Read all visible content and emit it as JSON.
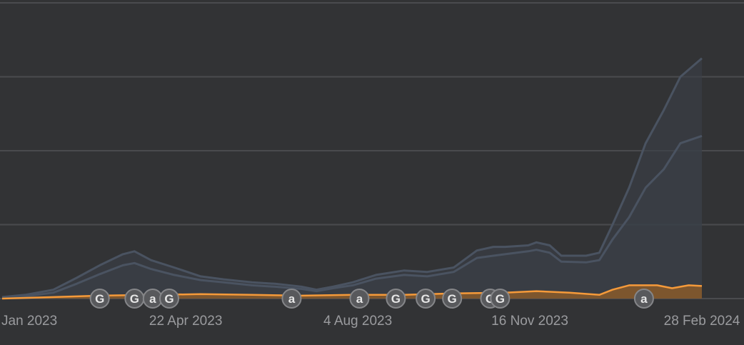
{
  "chart_data": {
    "type": "area",
    "title": "",
    "xlabel": "",
    "ylabel": "",
    "x_ticks": [
      "Jan 2023",
      "22 Apr 2023",
      "4 Aug 2023",
      "16 Nov 2023",
      "28 Feb 2024"
    ],
    "x_tick_dates": [
      "2023-01-08",
      "2023-04-22",
      "2023-08-04",
      "2023-11-16",
      "2024-02-28"
    ],
    "x_range": [
      "2023-01-01",
      "2024-02-28"
    ],
    "y_range": [
      0,
      4
    ],
    "y_gridlines": [
      0,
      1,
      2,
      3,
      4
    ],
    "y_tick_labels_visible": false,
    "grid": true,
    "series": [
      {
        "color": "#4a5361",
        "fill": "#3a3f47",
        "points": [
          [
            "2023-01-01",
            0.02
          ],
          [
            "2023-01-15",
            0.05
          ],
          [
            "2023-02-01",
            0.12
          ],
          [
            "2023-02-15",
            0.28
          ],
          [
            "2023-03-01",
            0.45
          ],
          [
            "2023-03-15",
            0.6
          ],
          [
            "2023-03-22",
            0.64
          ],
          [
            "2023-04-01",
            0.52
          ],
          [
            "2023-04-15",
            0.42
          ],
          [
            "2023-05-01",
            0.3
          ],
          [
            "2023-05-15",
            0.26
          ],
          [
            "2023-06-01",
            0.22
          ],
          [
            "2023-06-15",
            0.2
          ],
          [
            "2023-07-01",
            0.16
          ],
          [
            "2023-07-10",
            0.12
          ],
          [
            "2023-07-20",
            0.16
          ],
          [
            "2023-08-01",
            0.22
          ],
          [
            "2023-08-15",
            0.32
          ],
          [
            "2023-09-01",
            0.38
          ],
          [
            "2023-09-15",
            0.36
          ],
          [
            "2023-10-01",
            0.42
          ],
          [
            "2023-10-15",
            0.65
          ],
          [
            "2023-10-25",
            0.7
          ],
          [
            "2023-11-01",
            0.7
          ],
          [
            "2023-11-15",
            0.72
          ],
          [
            "2023-11-20",
            0.76
          ],
          [
            "2023-11-28",
            0.72
          ],
          [
            "2023-12-05",
            0.58
          ],
          [
            "2023-12-20",
            0.58
          ],
          [
            "2023-12-28",
            0.62
          ],
          [
            "2024-01-05",
            1.0
          ],
          [
            "2024-01-15",
            1.5
          ],
          [
            "2024-01-25",
            2.1
          ],
          [
            "2024-02-05",
            2.55
          ],
          [
            "2024-02-15",
            3.0
          ],
          [
            "2024-02-28",
            3.25
          ]
        ]
      },
      {
        "color": "#4a5361",
        "fill": "#3a3f47",
        "points": [
          [
            "2023-01-01",
            0.01
          ],
          [
            "2023-01-15",
            0.03
          ],
          [
            "2023-02-01",
            0.08
          ],
          [
            "2023-02-15",
            0.2
          ],
          [
            "2023-03-01",
            0.33
          ],
          [
            "2023-03-15",
            0.45
          ],
          [
            "2023-03-22",
            0.48
          ],
          [
            "2023-04-01",
            0.4
          ],
          [
            "2023-04-15",
            0.32
          ],
          [
            "2023-05-01",
            0.25
          ],
          [
            "2023-05-15",
            0.22
          ],
          [
            "2023-06-01",
            0.18
          ],
          [
            "2023-06-15",
            0.16
          ],
          [
            "2023-07-01",
            0.13
          ],
          [
            "2023-07-10",
            0.1
          ],
          [
            "2023-07-20",
            0.14
          ],
          [
            "2023-08-01",
            0.18
          ],
          [
            "2023-08-15",
            0.27
          ],
          [
            "2023-09-01",
            0.32
          ],
          [
            "2023-09-15",
            0.3
          ],
          [
            "2023-10-01",
            0.36
          ],
          [
            "2023-10-15",
            0.55
          ],
          [
            "2023-10-25",
            0.58
          ],
          [
            "2023-11-01",
            0.6
          ],
          [
            "2023-11-15",
            0.64
          ],
          [
            "2023-11-20",
            0.66
          ],
          [
            "2023-11-28",
            0.62
          ],
          [
            "2023-12-05",
            0.5
          ],
          [
            "2023-12-20",
            0.49
          ],
          [
            "2023-12-28",
            0.52
          ],
          [
            "2024-01-05",
            0.8
          ],
          [
            "2024-01-15",
            1.1
          ],
          [
            "2024-01-25",
            1.5
          ],
          [
            "2024-02-05",
            1.75
          ],
          [
            "2024-02-15",
            2.1
          ],
          [
            "2024-02-28",
            2.2
          ]
        ]
      },
      {
        "color": "#f59a3a",
        "fill": "#8a5a2a",
        "points": [
          [
            "2023-01-01",
            0.0
          ],
          [
            "2023-02-01",
            0.02
          ],
          [
            "2023-03-01",
            0.04
          ],
          [
            "2023-04-01",
            0.05
          ],
          [
            "2023-05-01",
            0.06
          ],
          [
            "2023-06-01",
            0.05
          ],
          [
            "2023-07-01",
            0.04
          ],
          [
            "2023-08-01",
            0.05
          ],
          [
            "2023-09-01",
            0.05
          ],
          [
            "2023-10-01",
            0.07
          ],
          [
            "2023-11-01",
            0.08
          ],
          [
            "2023-11-20",
            0.1
          ],
          [
            "2023-12-10",
            0.08
          ],
          [
            "2023-12-28",
            0.05
          ],
          [
            "2024-01-05",
            0.12
          ],
          [
            "2024-01-15",
            0.18
          ],
          [
            "2024-02-01",
            0.18
          ],
          [
            "2024-02-10",
            0.14
          ],
          [
            "2024-02-20",
            0.18
          ],
          [
            "2024-02-28",
            0.17
          ]
        ]
      }
    ],
    "markers": [
      {
        "date": "2023-03-01",
        "label": "G"
      },
      {
        "date": "2023-03-22",
        "label": "G"
      },
      {
        "date": "2023-04-02",
        "label": "a"
      },
      {
        "date": "2023-04-12",
        "label": "G"
      },
      {
        "date": "2023-06-25",
        "label": "a"
      },
      {
        "date": "2023-08-05",
        "label": "a"
      },
      {
        "date": "2023-08-27",
        "label": "G"
      },
      {
        "date": "2023-09-14",
        "label": "G"
      },
      {
        "date": "2023-09-30",
        "label": "G"
      },
      {
        "date": "2023-10-23",
        "label": "G"
      },
      {
        "date": "2023-10-29",
        "label": "G"
      },
      {
        "date": "2024-01-24",
        "label": "a"
      }
    ],
    "colors": {
      "background": "#323335",
      "grid": "#4a4b4e",
      "tick_label": "#9a9b9e",
      "marker_fill": "#58595c",
      "marker_stroke": "#858689",
      "marker_text": "#e6e6e6"
    }
  }
}
